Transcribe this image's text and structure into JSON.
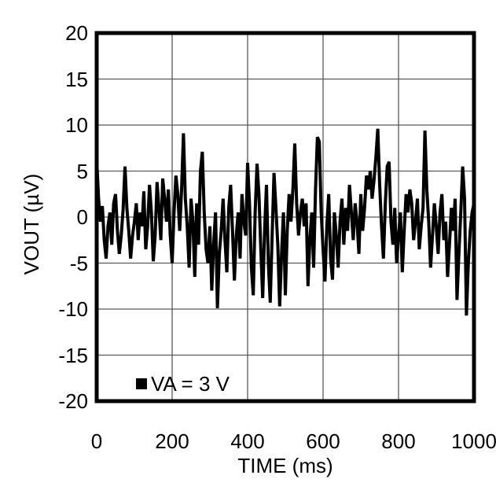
{
  "figure": {
    "background": "#ffffff",
    "title": "",
    "y_axis_title": "VOUT (µV)",
    "x_axis_title": "TIME (ms)",
    "legend": {
      "marker": "filled-square-icon",
      "label": "VA = 3 V",
      "position": "bottom-left-inside"
    },
    "colors": {
      "trace": "#000000",
      "grid": "#595959",
      "frame": "#000000",
      "text": "#000000",
      "background": "#ffffff"
    }
  },
  "chart_data": {
    "type": "line",
    "title": "",
    "xlabel": "TIME (ms)",
    "ylabel": "VOUT (µV)",
    "xlim": [
      0,
      1000
    ],
    "ylim": [
      -20,
      20
    ],
    "xticks": [
      0,
      200,
      400,
      600,
      800,
      1000
    ],
    "yticks": [
      20,
      15,
      10,
      5,
      0,
      -5,
      -10,
      -15,
      -20
    ],
    "grid": true,
    "legend_position": "bottom-left-inside",
    "series": [
      {
        "name": "VA = 3 V",
        "color": "#000000",
        "x_start_ms": 0,
        "x_step_ms": 5,
        "values_uv": [
          6.3,
          2.0,
          -0.5,
          1.2,
          -2.5,
          -4.5,
          -1.0,
          0.5,
          -3.0,
          1.5,
          2.5,
          -1.5,
          -4.0,
          -2.0,
          0.8,
          5.5,
          1.0,
          -1.5,
          -4.5,
          -2.0,
          -0.5,
          1.5,
          -2.5,
          0.5,
          -1.0,
          2.8,
          -3.5,
          -1.0,
          3.5,
          0.5,
          -4.8,
          -2.0,
          3.8,
          1.0,
          -2.5,
          4.2,
          2.0,
          -0.5,
          3.0,
          -2.0,
          -5.0,
          0.5,
          4.5,
          2.5,
          -1.5,
          3.0,
          9.1,
          2.0,
          -1.0,
          -5.5,
          2.0,
          -0.5,
          -6.5,
          1.5,
          -3.0,
          5.0,
          7.1,
          0.5,
          -3.5,
          -5.0,
          -1.0,
          -8.0,
          -3.0,
          0.5,
          -9.9,
          -4.0,
          -1.5,
          2.0,
          -2.5,
          -6.0,
          1.0,
          3.5,
          -1.5,
          -6.9,
          -2.0,
          0.5,
          -4.5,
          2.5,
          -0.5,
          -2.0,
          5.9,
          1.5,
          -5.5,
          -8.5,
          0.5,
          5.8,
          2.5,
          -3.5,
          -8.8,
          -1.5,
          3.5,
          -5.0,
          -9.3,
          -2.0,
          4.8,
          1.0,
          -3.0,
          -9.7,
          -4.0,
          0.5,
          -8.5,
          -1.5,
          2.5,
          -0.5,
          3.0,
          8.0,
          1.5,
          -2.0,
          0.5,
          2.0,
          -1.0,
          1.5,
          -7.5,
          -2.5,
          0.5,
          -5.5,
          3.0,
          8.7,
          8.2,
          0.5,
          -3.5,
          -7.0,
          -1.0,
          2.5,
          -4.5,
          -6.8,
          0.5,
          -2.0,
          -5.5,
          -0.5,
          2.0,
          -3.0,
          1.0,
          -1.5,
          3.5,
          0.5,
          -2.5,
          1.5,
          -0.5,
          -4.0,
          2.5,
          -1.5,
          1.0,
          4.5,
          3.0,
          5.0,
          2.0,
          4.0,
          6.5,
          9.6,
          3.5,
          -1.0,
          -4.5,
          1.5,
          5.5,
          6.0,
          -0.5,
          -3.0,
          1.0,
          -5.0,
          -2.0,
          0.5,
          -6.0,
          -1.5,
          2.5,
          0.5,
          3.0,
          1.5,
          -2.5,
          -0.5,
          2.0,
          -3.5,
          -1.0,
          1.0,
          9.4,
          3.0,
          -0.5,
          -5.5,
          -2.0,
          1.5,
          -1.0,
          -4.0,
          0.5,
          2.5,
          -2.5,
          -0.5,
          -6.5,
          -3.0,
          1.0,
          -1.5,
          2.0,
          -9.0,
          -4.0,
          0.5,
          5.5,
          2.0,
          -10.7,
          -5.0,
          -1.5,
          0.5,
          1.5
        ]
      }
    ]
  }
}
